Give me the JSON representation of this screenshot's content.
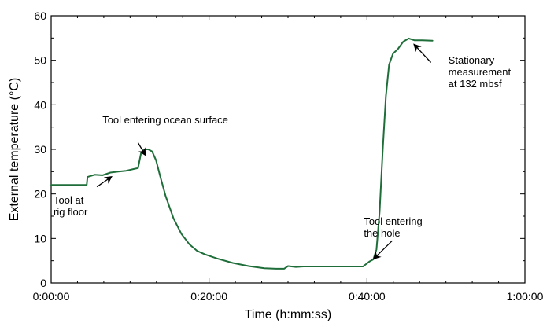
{
  "chart_data": {
    "type": "line",
    "xlabel": "Time (h:mm:ss)",
    "ylabel": "External temperature (°C)",
    "xlim": [
      0,
      60
    ],
    "ylim": [
      0,
      60
    ],
    "x_ticks": [
      0,
      20,
      40,
      60
    ],
    "x_tick_labels": [
      "0:00:00",
      "0:20:00",
      "0:40:00",
      "1:00:00"
    ],
    "y_ticks": [
      0,
      10,
      20,
      30,
      40,
      50,
      60
    ],
    "y_tick_labels": [
      "0",
      "10",
      "20",
      "30",
      "40",
      "50",
      "60"
    ],
    "grid": false,
    "series": [
      {
        "color": "#1f6e3a",
        "x": [
          0,
          4.5,
          4.6,
          5.5,
          6.5,
          7.5,
          8.5,
          9.5,
          10.5,
          11.0,
          11.4,
          11.8,
          12.3,
          12.8,
          13.3,
          13.8,
          14.5,
          15.5,
          16.5,
          17.5,
          18.5,
          19.5,
          21,
          23,
          25,
          27,
          28.5,
          29.5,
          30,
          31,
          32,
          34,
          36,
          38,
          39.5,
          40.3,
          40.8,
          41.2,
          41.6,
          42.0,
          42.4,
          42.8,
          43.3,
          43.9,
          44.6,
          45.3,
          46.0,
          47.0,
          48.3
        ],
        "y": [
          22,
          22,
          23.8,
          24.3,
          24.2,
          24.8,
          25.0,
          25.2,
          25.6,
          25.8,
          29.3,
          30.0,
          30.0,
          29.5,
          27.5,
          24.0,
          19.5,
          14.5,
          11.0,
          8.7,
          7.2,
          6.4,
          5.5,
          4.5,
          3.8,
          3.3,
          3.2,
          3.2,
          3.8,
          3.6,
          3.7,
          3.7,
          3.7,
          3.7,
          3.7,
          4.8,
          5.3,
          7.5,
          16.0,
          30.0,
          42.0,
          49.0,
          51.5,
          52.5,
          54.2,
          54.9,
          54.5,
          54.5,
          54.4
        ]
      }
    ],
    "annotations": [
      {
        "lines": [
          "Tool entering ocean surface"
        ],
        "x": 6.5,
        "y": 35.8,
        "arrow_from": [
          11.0,
          31.5
        ],
        "arrow_to": [
          11.9,
          28.8
        ]
      },
      {
        "lines": [
          "Tool at",
          "rig floor"
        ],
        "x": 0.3,
        "y": 17.8,
        "arrow_from": [
          5.8,
          21.6
        ],
        "arrow_to": [
          7.6,
          23.8
        ]
      },
      {
        "lines": [
          "Tool entering",
          "the hole"
        ],
        "x": 39.6,
        "y": 13.1,
        "arrow_from": [
          43.2,
          9.5
        ],
        "arrow_to": [
          40.9,
          5.5
        ]
      },
      {
        "lines": [
          "Stationary",
          "measurement",
          "at 132 mbsf"
        ],
        "x": 50.3,
        "y": 49.2,
        "arrow_from": [
          48.1,
          49.5
        ],
        "arrow_to": [
          46.0,
          53.5
        ]
      }
    ]
  }
}
